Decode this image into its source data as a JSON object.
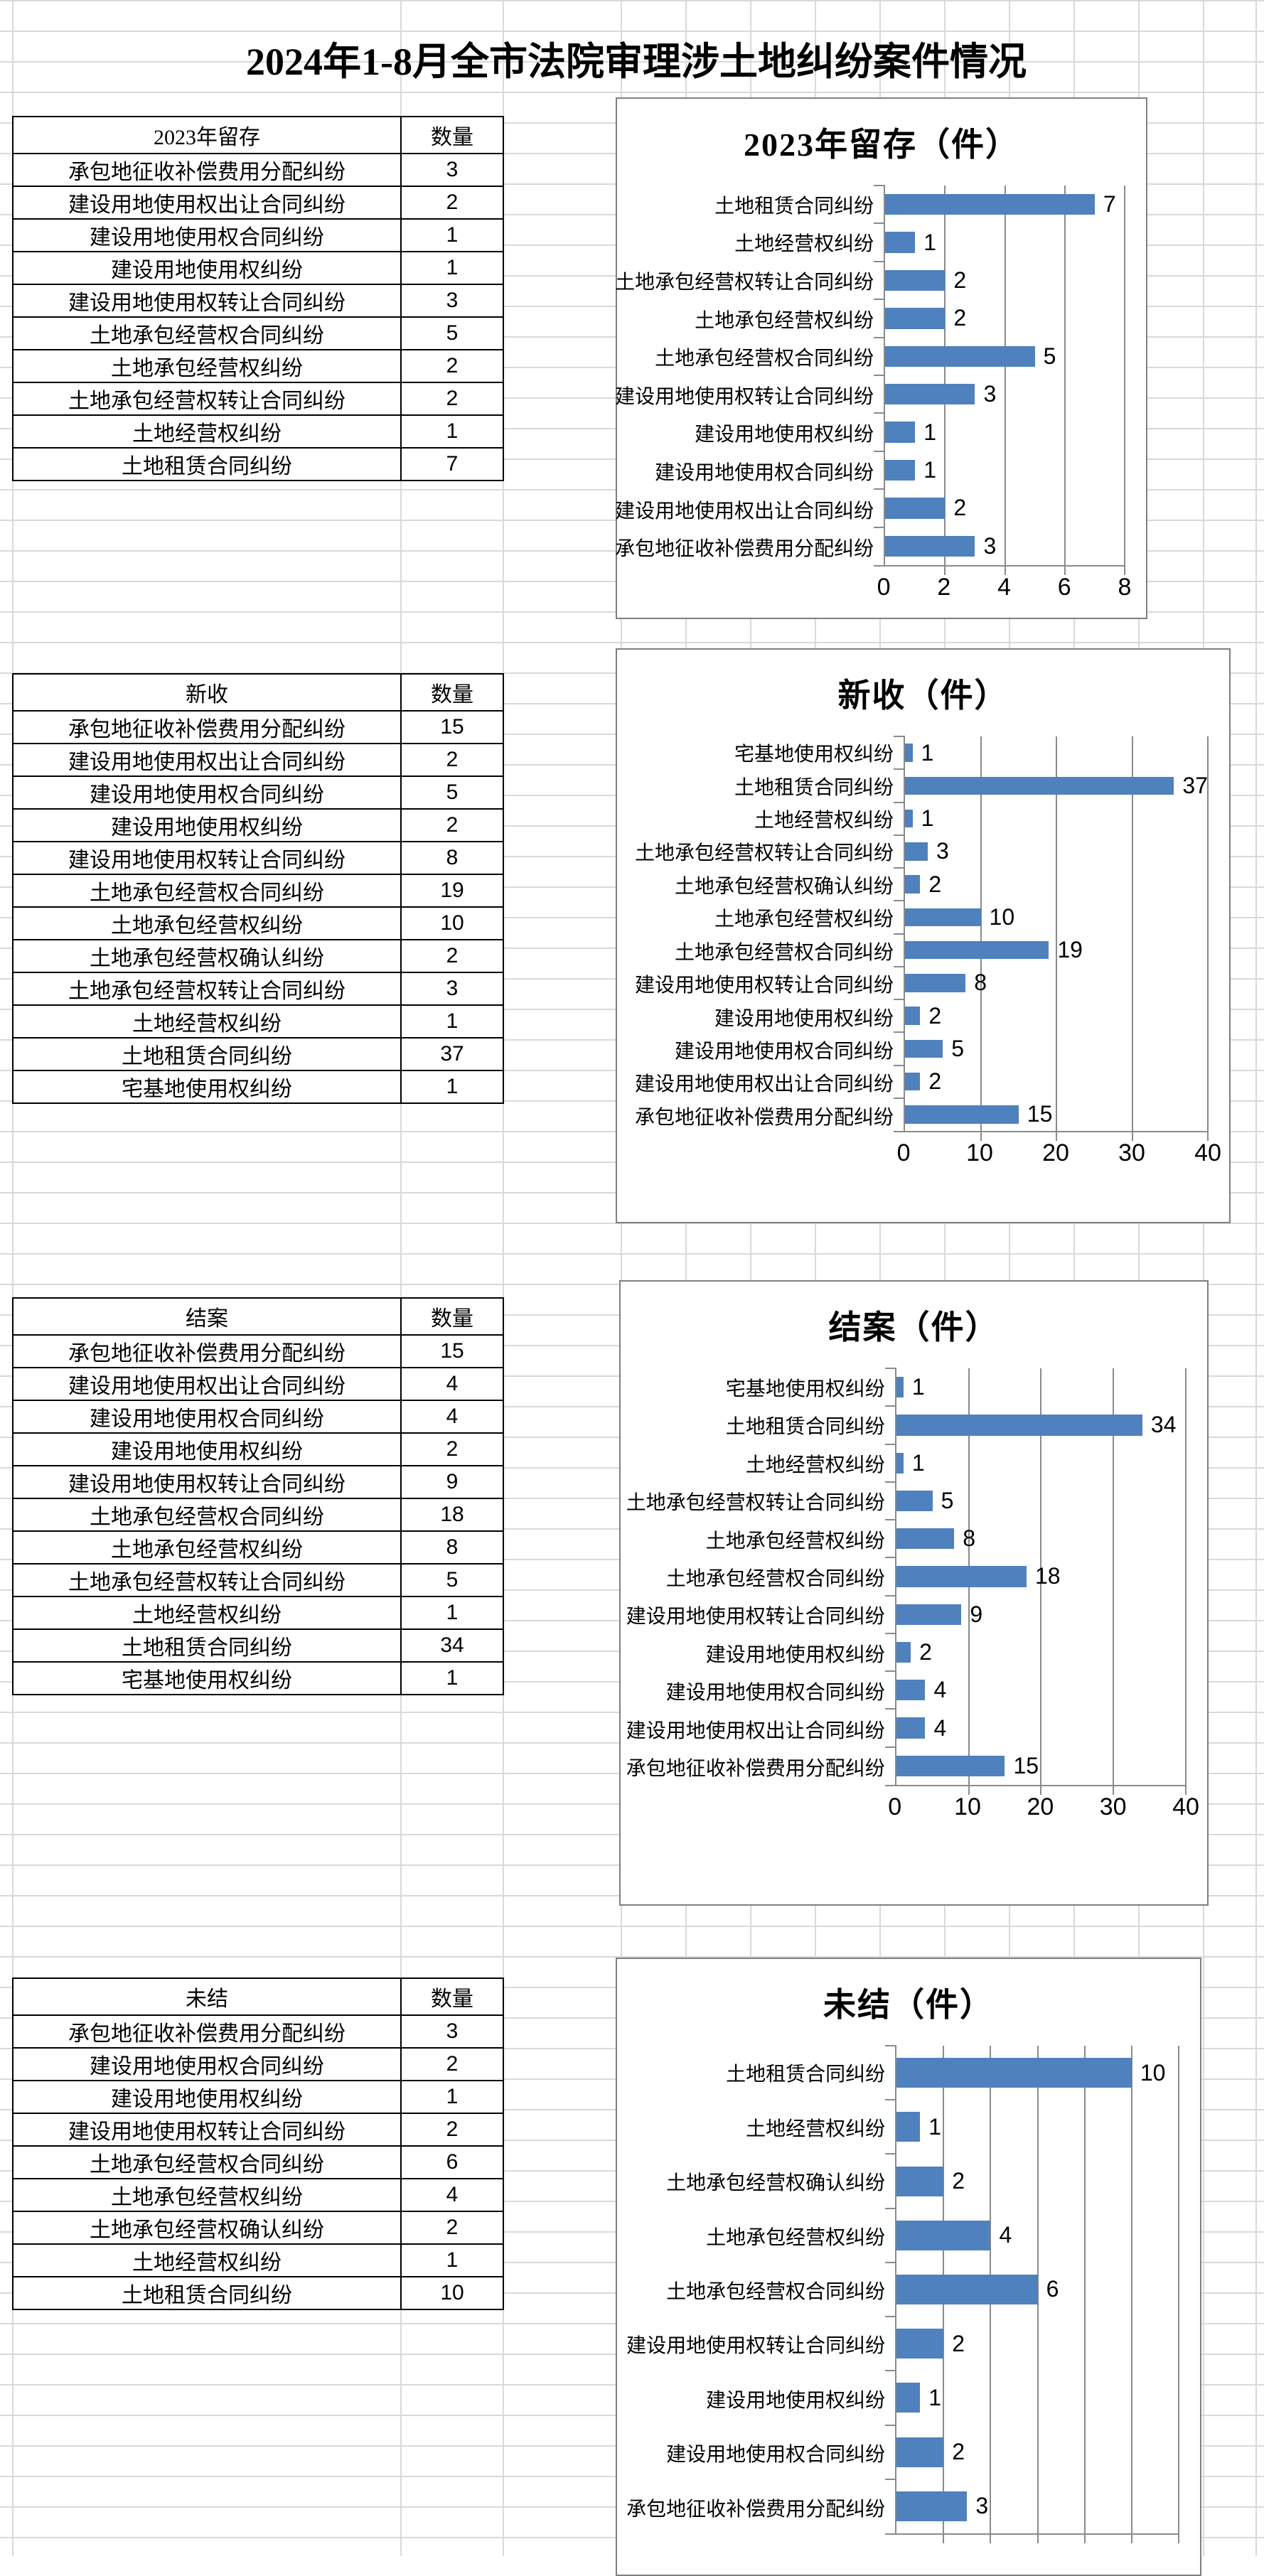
{
  "page_title": "2024年1-8月全市法院审理涉土地纠纷案件情况",
  "tables": [
    {
      "title": "2023年留存",
      "count_header": "数量",
      "rows": [
        {
          "label": "承包地征收补偿费用分配纠纷",
          "value": 3
        },
        {
          "label": "建设用地使用权出让合同纠纷",
          "value": 2
        },
        {
          "label": "建设用地使用权合同纠纷",
          "value": 1
        },
        {
          "label": "建设用地使用权纠纷",
          "value": 1
        },
        {
          "label": "建设用地使用权转让合同纠纷",
          "value": 3
        },
        {
          "label": "土地承包经营权合同纠纷",
          "value": 5
        },
        {
          "label": "土地承包经营权纠纷",
          "value": 2
        },
        {
          "label": "土地承包经营权转让合同纠纷",
          "value": 2
        },
        {
          "label": "土地经营权纠纷",
          "value": 1
        },
        {
          "label": "土地租赁合同纠纷",
          "value": 7
        }
      ]
    },
    {
      "title": "新收",
      "count_header": "数量",
      "rows": [
        {
          "label": "承包地征收补偿费用分配纠纷",
          "value": 15
        },
        {
          "label": "建设用地使用权出让合同纠纷",
          "value": 2
        },
        {
          "label": "建设用地使用权合同纠纷",
          "value": 5
        },
        {
          "label": "建设用地使用权纠纷",
          "value": 2
        },
        {
          "label": "建设用地使用权转让合同纠纷",
          "value": 8
        },
        {
          "label": "土地承包经营权合同纠纷",
          "value": 19
        },
        {
          "label": "土地承包经营权纠纷",
          "value": 10
        },
        {
          "label": "土地承包经营权确认纠纷",
          "value": 2
        },
        {
          "label": "土地承包经营权转让合同纠纷",
          "value": 3
        },
        {
          "label": "土地经营权纠纷",
          "value": 1
        },
        {
          "label": "土地租赁合同纠纷",
          "value": 37
        },
        {
          "label": "宅基地使用权纠纷",
          "value": 1
        }
      ]
    },
    {
      "title": "结案",
      "count_header": "数量",
      "rows": [
        {
          "label": "承包地征收补偿费用分配纠纷",
          "value": 15
        },
        {
          "label": "建设用地使用权出让合同纠纷",
          "value": 4
        },
        {
          "label": "建设用地使用权合同纠纷",
          "value": 4
        },
        {
          "label": "建设用地使用权纠纷",
          "value": 2
        },
        {
          "label": "建设用地使用权转让合同纠纷",
          "value": 9
        },
        {
          "label": "土地承包经营权合同纠纷",
          "value": 18
        },
        {
          "label": "土地承包经营权纠纷",
          "value": 8
        },
        {
          "label": "土地承包经营权转让合同纠纷",
          "value": 5
        },
        {
          "label": "土地经营权纠纷",
          "value": 1
        },
        {
          "label": "土地租赁合同纠纷",
          "value": 34
        },
        {
          "label": "宅基地使用权纠纷",
          "value": 1
        }
      ]
    },
    {
      "title": "未结",
      "count_header": "数量",
      "rows": [
        {
          "label": "承包地征收补偿费用分配纠纷",
          "value": 3
        },
        {
          "label": "建设用地使用权合同纠纷",
          "value": 2
        },
        {
          "label": "建设用地使用权纠纷",
          "value": 1
        },
        {
          "label": "建设用地使用权转让合同纠纷",
          "value": 2
        },
        {
          "label": "土地承包经营权合同纠纷",
          "value": 6
        },
        {
          "label": "土地承包经营权纠纷",
          "value": 4
        },
        {
          "label": "土地承包经营权确认纠纷",
          "value": 2
        },
        {
          "label": "土地经营权纠纷",
          "value": 1
        },
        {
          "label": "土地租赁合同纠纷",
          "value": 10
        }
      ]
    }
  ],
  "chart_data": [
    {
      "type": "bar",
      "orientation": "horizontal",
      "title": "2023年留存（件）",
      "categories": [
        "土地租赁合同纠纷",
        "土地经营权纠纷",
        "土地承包经营权转让合同纠纷",
        "土地承包经营权纠纷",
        "土地承包经营权合同纠纷",
        "建设用地使用权转让合同纠纷",
        "建设用地使用权纠纷",
        "建设用地使用权合同纠纷",
        "建设用地使用权出让合同纠纷",
        "承包地征收补偿费用分配纠纷"
      ],
      "values": [
        7,
        1,
        2,
        2,
        5,
        3,
        1,
        1,
        2,
        3
      ],
      "xlim": [
        0,
        8
      ],
      "ticks": [
        0,
        2,
        4,
        6,
        8
      ],
      "tick_labels_visible": true,
      "grid": true,
      "value_labels": true,
      "bar_color": "#4E81BD"
    },
    {
      "type": "bar",
      "orientation": "horizontal",
      "title": "新收（件）",
      "categories": [
        "宅基地使用权纠纷",
        "土地租赁合同纠纷",
        "土地经营权纠纷",
        "土地承包经营权转让合同纠纷",
        "土地承包经营权确认纠纷",
        "土地承包经营权纠纷",
        "土地承包经营权合同纠纷",
        "建设用地使用权转让合同纠纷",
        "建设用地使用权纠纷",
        "建设用地使用权合同纠纷",
        "建设用地使用权出让合同纠纷",
        "承包地征收补偿费用分配纠纷"
      ],
      "values": [
        1,
        37,
        1,
        3,
        2,
        10,
        19,
        8,
        2,
        5,
        2,
        15
      ],
      "xlim": [
        0,
        40
      ],
      "ticks": [
        0,
        10,
        20,
        30,
        40
      ],
      "tick_labels_visible": true,
      "grid": true,
      "value_labels": true,
      "bar_color": "#4E81BD"
    },
    {
      "type": "bar",
      "orientation": "horizontal",
      "title": "结案（件）",
      "categories": [
        "宅基地使用权纠纷",
        "土地租赁合同纠纷",
        "土地经营权纠纷",
        "土地承包经营权转让合同纠纷",
        "土地承包经营权纠纷",
        "土地承包经营权合同纠纷",
        "建设用地使用权转让合同纠纷",
        "建设用地使用权纠纷",
        "建设用地使用权合同纠纷",
        "建设用地使用权出让合同纠纷",
        "承包地征收补偿费用分配纠纷"
      ],
      "values": [
        1,
        34,
        1,
        5,
        8,
        18,
        9,
        2,
        4,
        4,
        15
      ],
      "xlim": [
        0,
        40
      ],
      "ticks": [
        0,
        10,
        20,
        30,
        40
      ],
      "tick_labels_visible": true,
      "grid": true,
      "value_labels": true,
      "bar_color": "#4E81BD"
    },
    {
      "type": "bar",
      "orientation": "horizontal",
      "title": "未结（件）",
      "categories": [
        "土地租赁合同纠纷",
        "土地经营权纠纷",
        "土地承包经营权确认纠纷",
        "土地承包经营权纠纷",
        "土地承包经营权合同纠纷",
        "建设用地使用权转让合同纠纷",
        "建设用地使用权纠纷",
        "建设用地使用权合同纠纷",
        "承包地征收补偿费用分配纠纷"
      ],
      "values": [
        10,
        1,
        2,
        4,
        6,
        2,
        1,
        2,
        3
      ],
      "xlim": [
        0,
        12
      ],
      "ticks": [
        0,
        2,
        4,
        6,
        8,
        10,
        12
      ],
      "tick_labels_visible": false,
      "grid": true,
      "value_labels": true,
      "bar_color": "#4E81BD"
    }
  ]
}
